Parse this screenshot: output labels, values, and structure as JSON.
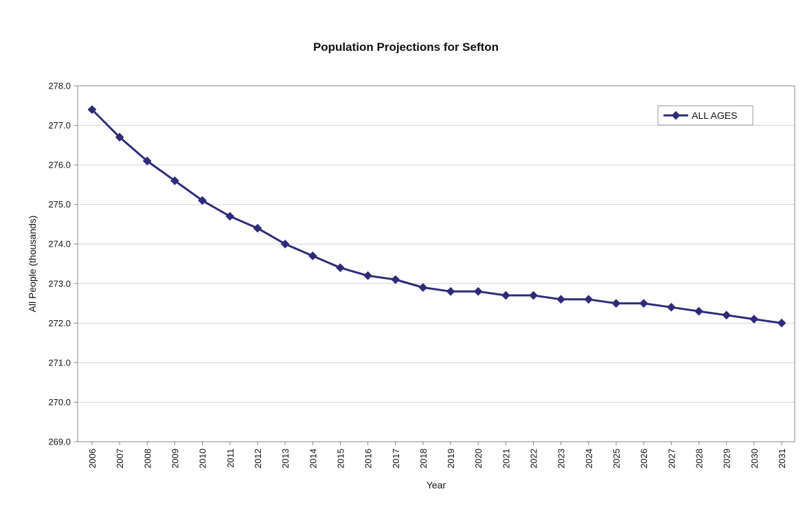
{
  "chart_data": {
    "type": "line",
    "title": "Population Projections for Sefton",
    "xlabel": "Year",
    "ylabel": "All People (thousands)",
    "ylim": [
      269.0,
      278.0
    ],
    "yticks": [
      "269.0",
      "270.0",
      "271.0",
      "272.0",
      "273.0",
      "274.0",
      "275.0",
      "276.0",
      "277.0",
      "278.0"
    ],
    "grid": true,
    "legend_position": "top-right",
    "categories": [
      "2006",
      "2007",
      "2008",
      "2009",
      "2010",
      "2011",
      "2012",
      "2013",
      "2014",
      "2015",
      "2016",
      "2017",
      "2018",
      "2019",
      "2020",
      "2021",
      "2022",
      "2023",
      "2024",
      "2025",
      "2026",
      "2027",
      "2028",
      "2029",
      "2030",
      "2031"
    ],
    "series": [
      {
        "name": "ALL AGES",
        "color": "#2e2b7a",
        "marker": "diamond",
        "values": [
          277.4,
          276.7,
          276.1,
          275.6,
          275.1,
          274.7,
          274.4,
          274.0,
          273.7,
          273.4,
          273.2,
          273.1,
          272.9,
          272.8,
          272.8,
          272.7,
          272.7,
          272.6,
          272.6,
          272.5,
          272.5,
          272.4,
          272.3,
          272.2,
          272.1,
          272.0
        ]
      }
    ]
  }
}
